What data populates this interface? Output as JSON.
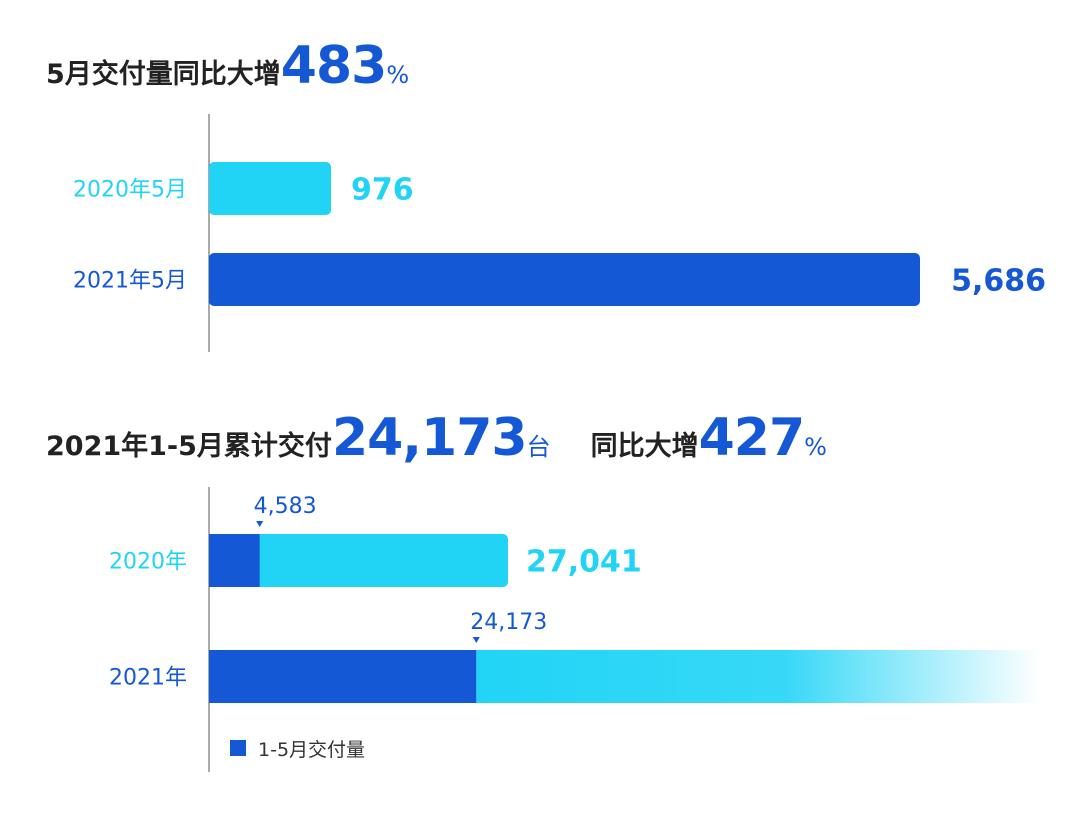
{
  "colors": {
    "dark": "#1558d6",
    "light": "#21d4f6",
    "text": "#222222"
  },
  "title1": {
    "prefix": "5月交付量同比大增",
    "value": "483",
    "suffix": "%"
  },
  "title2": {
    "prefix": "2021年1-5月累计交付",
    "value": "24,173",
    "unit": "台",
    "growth_label": "同比大增",
    "growth_value": "427",
    "growth_suffix": "%"
  },
  "chart_data": [
    {
      "type": "bar",
      "orientation": "horizontal",
      "categories": [
        "2020年5月",
        "2021年5月"
      ],
      "values": [
        976,
        5686
      ],
      "value_labels": [
        "976",
        "5,686"
      ],
      "xlim": [
        0,
        5686
      ]
    },
    {
      "type": "bar",
      "orientation": "horizontal",
      "stacked": true,
      "categories": [
        "2020年",
        "2021年"
      ],
      "series": [
        {
          "name": "1-5月交付量",
          "values": [
            4583,
            24173
          ],
          "value_labels": [
            "4,583",
            "24,173"
          ]
        },
        {
          "values": [
            22458,
            null
          ]
        }
      ],
      "totals": [
        27041,
        null
      ],
      "total_labels": [
        "27,041",
        ""
      ],
      "legend": {
        "position": "bottom-left"
      },
      "xlim": [
        0,
        27041
      ]
    }
  ]
}
